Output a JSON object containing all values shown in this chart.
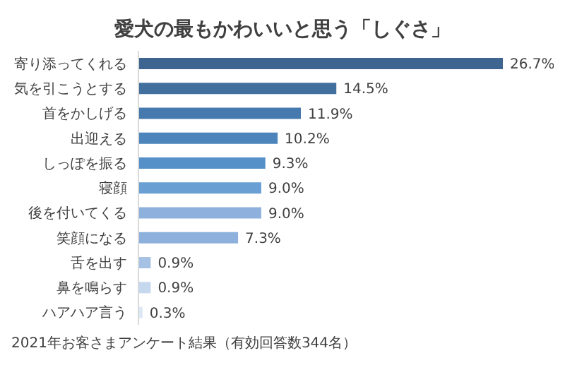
{
  "chart_data": {
    "type": "bar",
    "orientation": "horizontal",
    "title": "愛犬の最もかわいいと思う「しぐさ」",
    "categories": [
      "寄り添ってくれる",
      "気を引こうとする",
      "首をかしげる",
      "出迎える",
      "しっぽを振る",
      "寝顔",
      "後を付いてくる",
      "笑顔になる",
      "舌を出す",
      "鼻を鳴らす",
      "ハアハア言う"
    ],
    "values": [
      26.7,
      14.5,
      11.9,
      10.2,
      9.3,
      9.0,
      9.0,
      7.3,
      0.9,
      0.9,
      0.3
    ],
    "value_labels": [
      "26.7%",
      "14.5%",
      "11.9%",
      "10.2%",
      "9.3%",
      "9.0%",
      "9.0%",
      "7.3%",
      "0.9%",
      "0.9%",
      "0.3%"
    ],
    "colors": [
      "#3d6590",
      "#42709e",
      "#4679ad",
      "#4c84bb",
      "#5590c8",
      "#6a9fd4",
      "#8db1dc",
      "#8db1dc",
      "#a5c1e4",
      "#c6d8ee",
      "#dde8f5"
    ],
    "annotations": [
      "2021年お客さまアンケート結果（有効回答数344名）"
    ]
  }
}
